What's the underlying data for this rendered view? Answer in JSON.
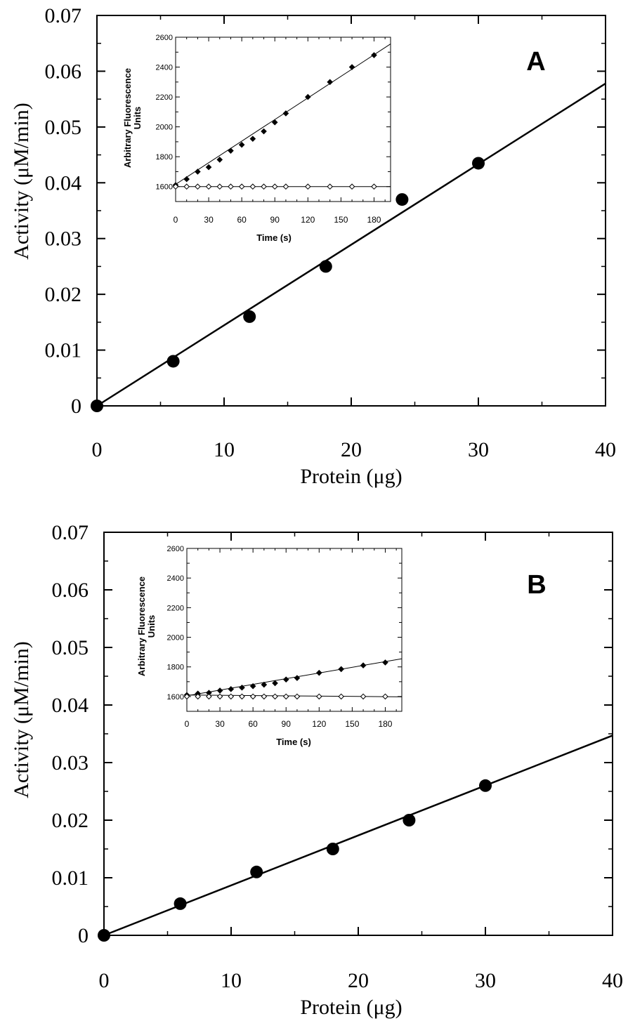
{
  "chart_data": [
    {
      "type": "scatter",
      "panel_label": "A",
      "xlabel": "Protein (μg)",
      "ylabel": "Activity (μM/min)",
      "xlim": [
        0,
        40
      ],
      "ylim": [
        0,
        0.07
      ],
      "x_ticks": [
        "0",
        "10",
        "20",
        "30",
        "40"
      ],
      "y_ticks": [
        "0",
        "0.01",
        "0.02",
        "0.03",
        "0.04",
        "0.05",
        "0.06",
        "0.07"
      ],
      "series": [
        {
          "x": [
            0,
            6,
            12,
            18,
            24,
            30
          ],
          "y": [
            0,
            0.008,
            0.016,
            0.025,
            0.037,
            0.0435
          ]
        }
      ],
      "fit_line": {
        "x": [
          0,
          40
        ],
        "y": [
          0,
          0.0578
        ]
      },
      "inset": {
        "type": "scatter",
        "xlabel": "Time (s)",
        "ylabel": "Arbitrary Fluorescence Units",
        "xlim": [
          0,
          195
        ],
        "ylim": [
          1500,
          2600
        ],
        "x_ticks": [
          "0",
          "30",
          "60",
          "90",
          "120",
          "150",
          "180"
        ],
        "y_ticks": [
          "1600",
          "1800",
          "2000",
          "2200",
          "2400",
          "2600"
        ],
        "series": [
          {
            "marker": "filled-diamond",
            "x": [
              0,
              10,
              20,
              30,
              40,
              50,
              60,
              70,
              80,
              90,
              100,
              120,
              140,
              160,
              180
            ],
            "y": [
              1610,
              1650,
              1700,
              1730,
              1780,
              1840,
              1880,
              1920,
              1970,
              2030,
              2090,
              2200,
              2300,
              2400,
              2480
            ],
            "fit_line": {
              "x": [
                0,
                195
              ],
              "y": [
                1615,
                2555
              ]
            }
          },
          {
            "marker": "open-diamond",
            "x": [
              0,
              10,
              20,
              30,
              40,
              50,
              60,
              70,
              80,
              90,
              100,
              120,
              140,
              160,
              180
            ],
            "y": [
              1600,
              1600,
              1600,
              1600,
              1600,
              1600,
              1600,
              1600,
              1600,
              1600,
              1600,
              1600,
              1600,
              1600,
              1600
            ],
            "fit_line": {
              "x": [
                0,
                195
              ],
              "y": [
                1600,
                1600
              ]
            }
          }
        ]
      }
    },
    {
      "type": "scatter",
      "panel_label": "B",
      "xlabel": "Protein (μg)",
      "ylabel": "Activity (μM/min)",
      "xlim": [
        0,
        40
      ],
      "ylim": [
        0,
        0.07
      ],
      "x_ticks": [
        "0",
        "10",
        "20",
        "30",
        "40"
      ],
      "y_ticks": [
        "0",
        "0.01",
        "0.02",
        "0.03",
        "0.04",
        "0.05",
        "0.06",
        "0.07"
      ],
      "series": [
        {
          "x": [
            0,
            6,
            12,
            18,
            24,
            30
          ],
          "y": [
            0,
            0.0055,
            0.011,
            0.015,
            0.02,
            0.026
          ]
        }
      ],
      "fit_line": {
        "x": [
          0,
          40
        ],
        "y": [
          0,
          0.0347
        ]
      },
      "inset": {
        "type": "scatter",
        "xlabel": "Time (s)",
        "ylabel": "Arbitrary Fluorescence Units",
        "xlim": [
          0,
          195
        ],
        "ylim": [
          1500,
          2600
        ],
        "x_ticks": [
          "0",
          "30",
          "60",
          "90",
          "120",
          "150",
          "180"
        ],
        "y_ticks": [
          "1600",
          "1800",
          "2000",
          "2200",
          "2400",
          "2600"
        ],
        "series": [
          {
            "marker": "filled-diamond",
            "x": [
              0,
              10,
              20,
              30,
              40,
              50,
              60,
              70,
              80,
              90,
              100,
              120,
              140,
              160,
              180
            ],
            "y": [
              1610,
              1620,
              1625,
              1640,
              1650,
              1660,
              1670,
              1680,
              1690,
              1715,
              1725,
              1760,
              1785,
              1810,
              1830
            ],
            "fit_line": {
              "x": [
                0,
                195
              ],
              "y": [
                1605,
                1855
              ]
            }
          },
          {
            "marker": "open-diamond",
            "x": [
              0,
              10,
              20,
              30,
              40,
              50,
              60,
              70,
              80,
              90,
              100,
              120,
              140,
              160,
              180
            ],
            "y": [
              1600,
              1600,
              1600,
              1600,
              1600,
              1600,
              1600,
              1600,
              1600,
              1600,
              1600,
              1600,
              1600,
              1600,
              1600
            ],
            "fit_line": {
              "x": [
                0,
                195
              ],
              "y": [
                1610,
                1598
              ]
            }
          }
        ]
      }
    }
  ]
}
